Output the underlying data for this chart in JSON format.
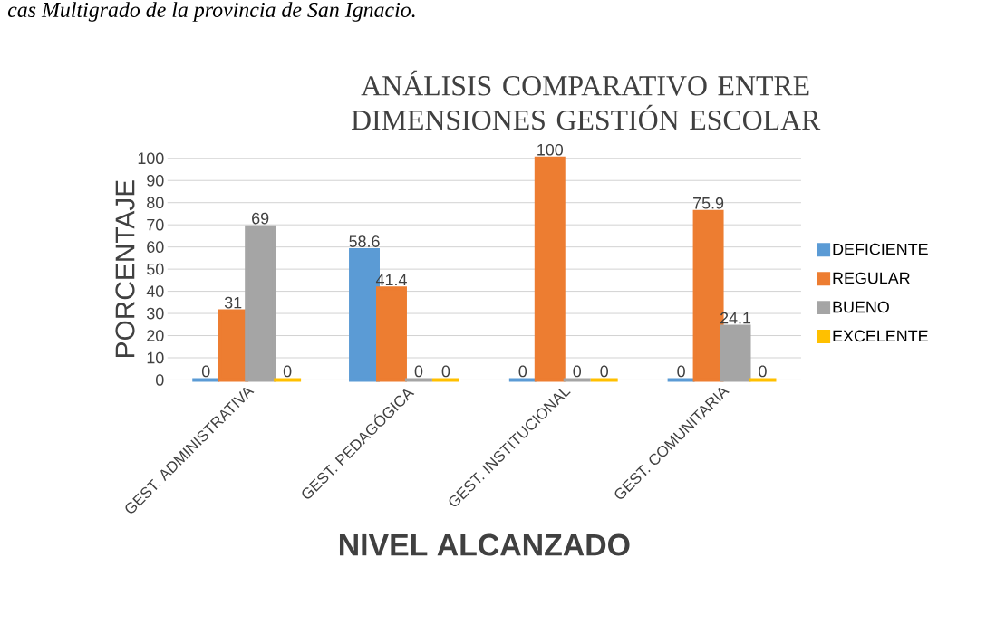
{
  "chart_data": {
    "type": "bar",
    "title": "ANÁLISIS COMPARATIVO ENTRE DIMENSIONES GESTIÓN ESCOLAR",
    "xlabel": "NIVEL ALCANZADO",
    "ylabel": "PORCENTAJE",
    "categories": [
      "GEST. ADMINISTRATIVA",
      "GEST. PEDAGÓGICA",
      "GEST. INSTITUCIONAL",
      "GEST. COMUNITARIA"
    ],
    "series": [
      {
        "name": "DEFICIENTE",
        "color": "#5b9bd5",
        "values": [
          0,
          58.6,
          0,
          0
        ]
      },
      {
        "name": "REGULAR",
        "color": "#ed7d31",
        "values": [
          31,
          41.4,
          100,
          75.9
        ]
      },
      {
        "name": "BUENO",
        "color": "#a5a5a5",
        "values": [
          69,
          0,
          0,
          24.1
        ]
      },
      {
        "name": "EXCELENTE",
        "color": "#ffc000",
        "values": [
          0,
          0,
          0,
          0
        ]
      }
    ],
    "ylim": [
      0,
      100
    ],
    "yticks": [
      0,
      10,
      20,
      30,
      40,
      50,
      60,
      70,
      80,
      90,
      100
    ],
    "grid": "y",
    "legend": "right",
    "data_labels": true,
    "annotations": [
      "cas Multigrado de la provincia de San Ignacio."
    ]
  }
}
